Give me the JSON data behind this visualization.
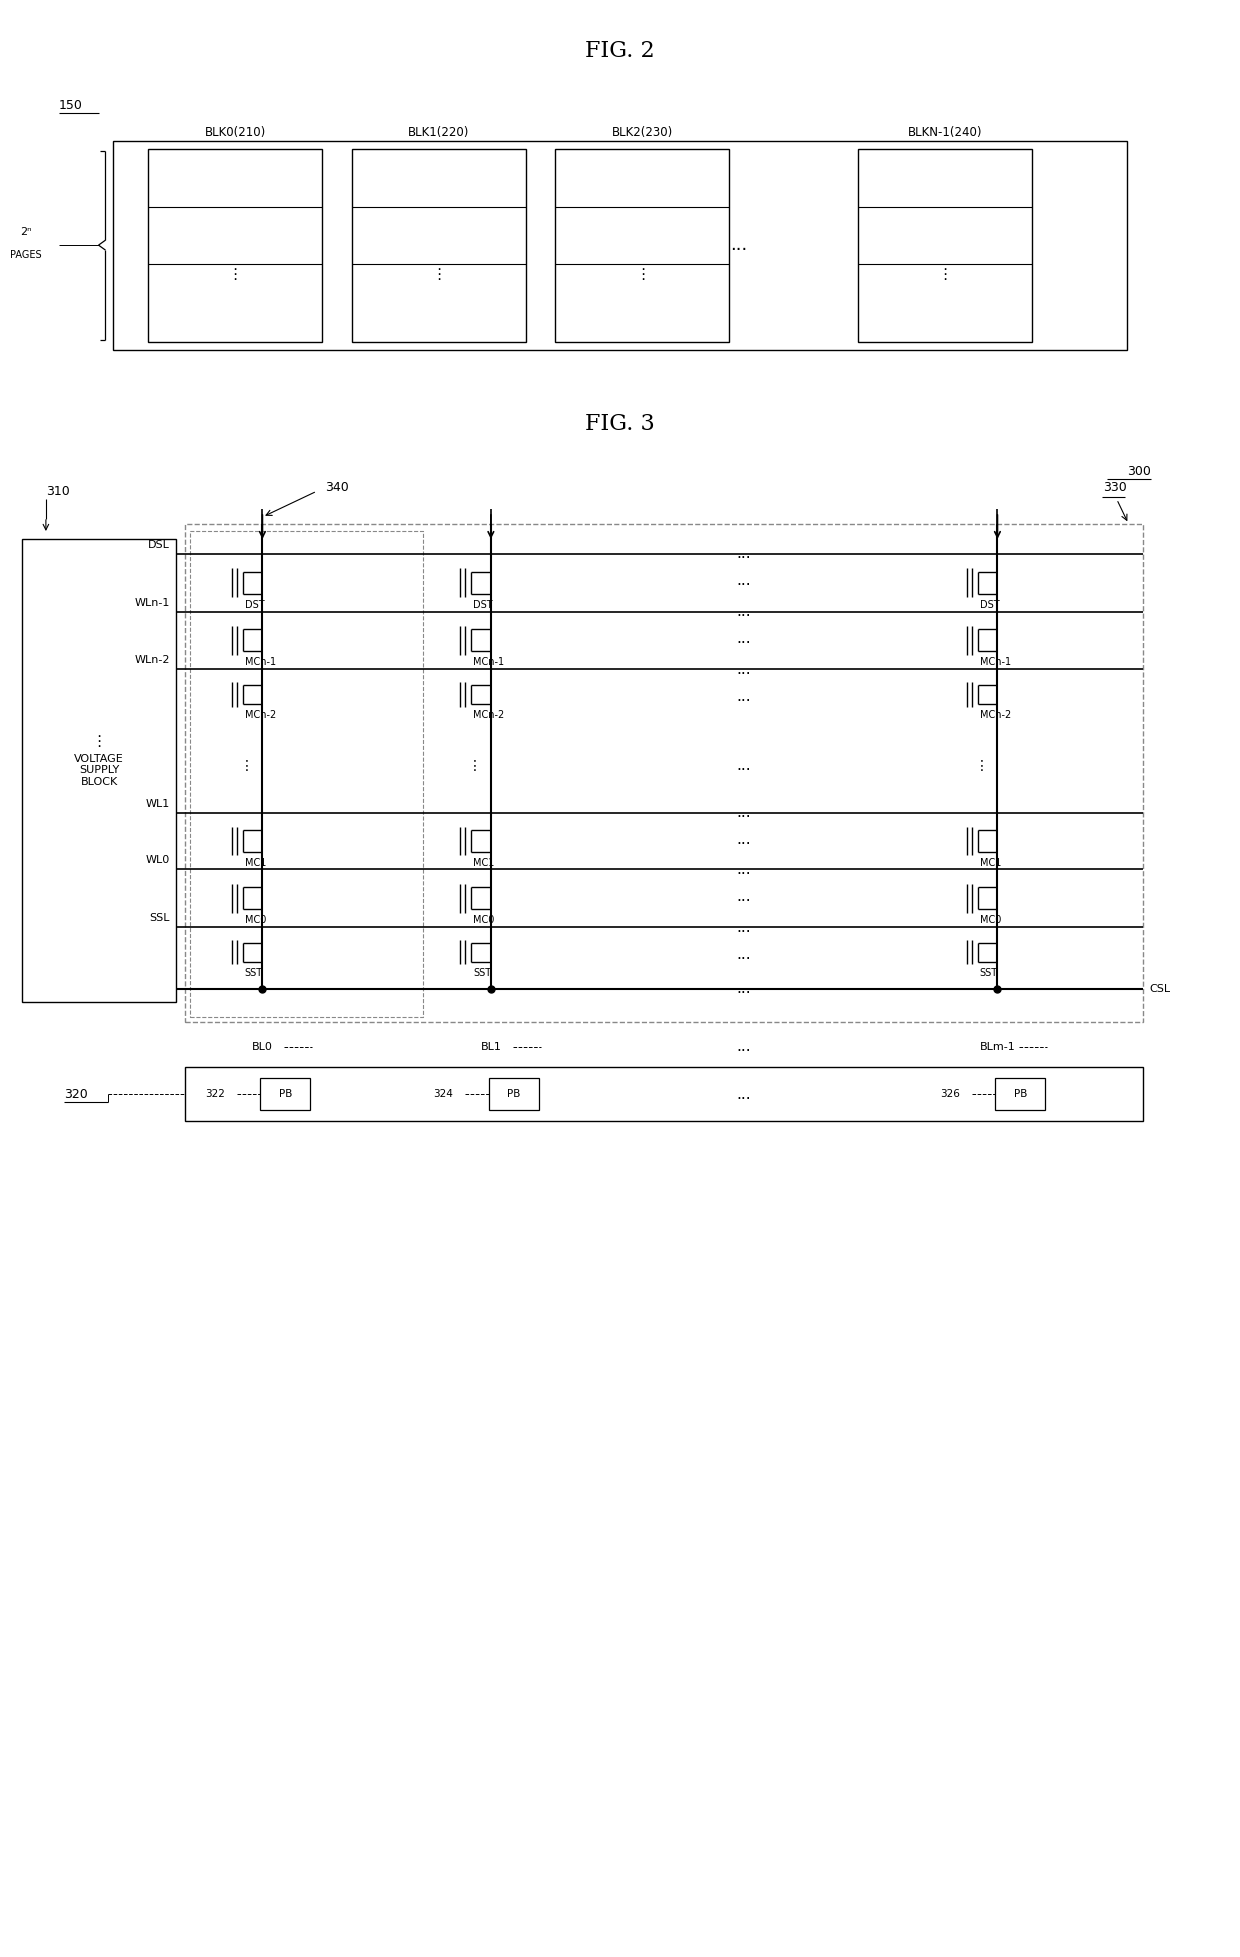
{
  "fig2_title": "FIG. 2",
  "fig3_title": "FIG. 3",
  "fig2_label": "150",
  "fig3_label": "300",
  "blk_labels": [
    "BLK0(210)",
    "BLK1(220)",
    "BLK2(230)",
    "BLKN-1(240)"
  ],
  "pages_label": "2ⁿ PAGES",
  "wl_labels": [
    "DSL",
    "WLn-1",
    "WLn-2",
    "WL1",
    "WL0",
    "SSL"
  ],
  "mc_labels": [
    "DST",
    "MCn-1",
    "MCn-2",
    "MC1",
    "MC0",
    "SST"
  ],
  "col_labels": [
    "BL0",
    "BL1",
    "BLm-1"
  ],
  "vsb_label": "VOLTAGE\nSUPPLY\nBLOCK",
  "ref_310": "310",
  "ref_320": "320",
  "ref_330": "330",
  "ref_340": "340",
  "ref_322": "322",
  "ref_324": "324",
  "ref_326": "326",
  "csl_label": "CSL",
  "pb_label": "PB",
  "bg_color": "#ffffff",
  "line_color": "#000000",
  "dashed_color": "#888888",
  "text_color": "#000000"
}
